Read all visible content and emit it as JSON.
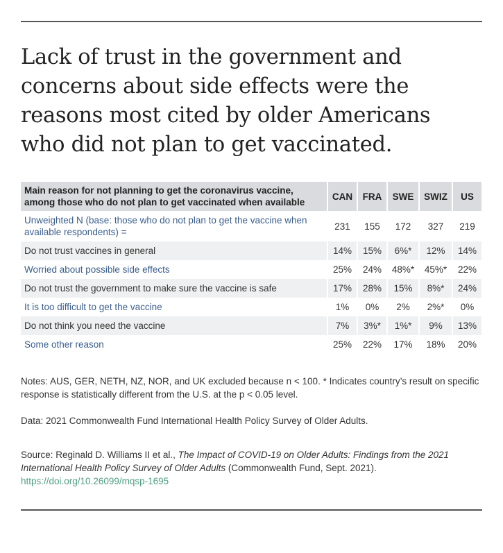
{
  "title": "Lack of trust in the government and concerns about side effects were the reasons most cited by older Americans who did not plan to get vaccinated.",
  "chart_data": {
    "type": "table",
    "header": "Main reason for not planning to get the coronavirus vaccine, among those who do not plan to get vaccinated when available",
    "columns": [
      "CAN",
      "FRA",
      "SWE",
      "SWIZ",
      "US"
    ],
    "rows": [
      {
        "label": "Unweighted N (base: those who do not plan to get the vaccine when available respondents) =",
        "values": [
          "231",
          "155",
          "172",
          "327",
          "219"
        ]
      },
      {
        "label": "Do not trust vaccines in general",
        "values": [
          "14%",
          "15%",
          "6%*",
          "12%",
          "14%"
        ]
      },
      {
        "label": "Worried about possible side effects",
        "values": [
          "25%",
          "24%",
          "48%*",
          "45%*",
          "22%"
        ]
      },
      {
        "label": "Do not trust the government to make sure the vaccine is safe",
        "values": [
          "17%",
          "28%",
          "15%",
          "8%*",
          "24%"
        ]
      },
      {
        "label": "It is too difficult to get the vaccine",
        "values": [
          "1%",
          "0%",
          "2%",
          "2%*",
          "0%"
        ]
      },
      {
        "label": "Do not think you need the vaccine",
        "values": [
          "7%",
          "3%*",
          "1%*",
          "9%",
          "13%"
        ]
      },
      {
        "label": "Some other reason",
        "values": [
          "25%",
          "22%",
          "17%",
          "18%",
          "20%"
        ]
      }
    ]
  },
  "notes": "Notes: AUS, GER, NETH, NZ, NOR, and UK excluded because n < 100. * Indicates country’s result on specific response is statistically different from the U.S. at the p < 0.05 level.",
  "data_line": "Data: 2021 Commonwealth Fund International Health Policy Survey of Older Adults.",
  "source": {
    "prefix": "Source: Reginald D. Williams II et al., ",
    "italic": "The Impact of COVID-19 on Older Adults: Findings from the 2021 International Health Policy Survey of Older Adults",
    "suffix": " (Commonwealth Fund, Sept. 2021). ",
    "link": "https://doi.org/10.26099/mqsp-1695"
  },
  "colors": {
    "header_bg": "#d9dbde",
    "stripe_bg": "#eff0f1",
    "label_blue": "#3a5e8c",
    "link": "#4f9d82"
  }
}
